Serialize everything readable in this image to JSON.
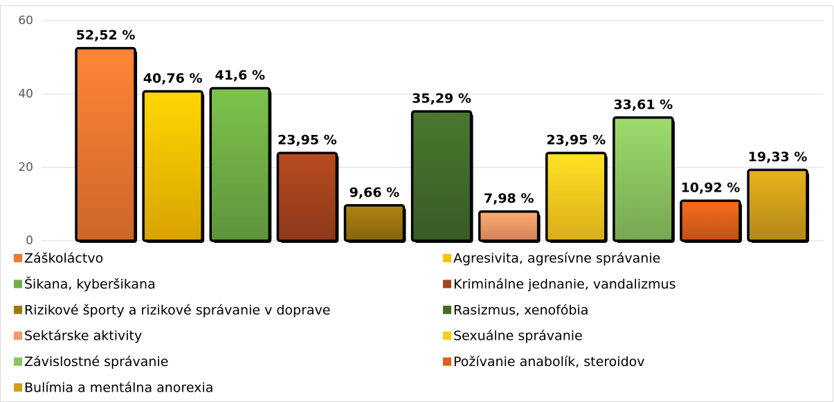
{
  "chart_data": {
    "type": "bar",
    "ylim": [
      0,
      60
    ],
    "yticks": [
      0,
      20,
      40,
      60
    ],
    "grid": true,
    "legend": "bottom",
    "series": [
      {
        "name": "Záškoláctvo",
        "color": "#f07830",
        "values": [
          52.52
        ],
        "value_labels": [
          "52,52 %"
        ]
      },
      {
        "name": "Agresivita, agresívne správanie",
        "color": "#ffc000",
        "values": [
          40.76
        ],
        "value_labels": [
          "40,76 %"
        ]
      },
      {
        "name": "Šikana, kyberšikana",
        "color": "#6fae45",
        "values": [
          41.6
        ],
        "value_labels": [
          "41,6 %"
        ]
      },
      {
        "name": "Kriminálne jednanie, vandalizmus",
        "color": "#a5431c",
        "values": [
          23.95
        ],
        "value_labels": [
          "23,95 %"
        ]
      },
      {
        "name": "Rizikové športy a rizikové správanie v doprave",
        "color": "#9c760f",
        "values": [
          9.66
        ],
        "value_labels": [
          "9,66 %"
        ]
      },
      {
        "name": "Rasizmus, xenofóbia",
        "color": "#426b2a",
        "values": [
          35.29
        ],
        "value_labels": [
          "35,29 %"
        ]
      },
      {
        "name": "Sektárske aktivity",
        "color": "#f59a66",
        "values": [
          7.98
        ],
        "value_labels": [
          "7,98 %"
        ]
      },
      {
        "name": "Sexuálne správanie",
        "color": "#ffcb20",
        "values": [
          23.95
        ],
        "value_labels": [
          "23,95 %"
        ]
      },
      {
        "name": "Závislostné správanie",
        "color": "#8cc460",
        "values": [
          33.61
        ],
        "value_labels": [
          "33,61 %"
        ]
      },
      {
        "name": "Požívanie anabolík, steroidov",
        "color": "#e0601a",
        "values": [
          10.92
        ],
        "value_labels": [
          "10,92 %"
        ]
      },
      {
        "name": "Bulímia a mentálna anorexia",
        "color": "#d0a01a",
        "values": [
          19.33
        ],
        "value_labels": [
          "19,33 %"
        ]
      }
    ]
  }
}
